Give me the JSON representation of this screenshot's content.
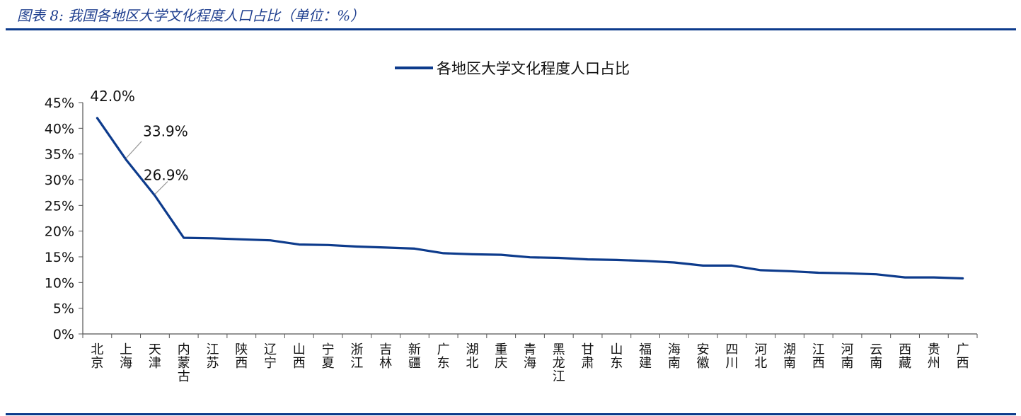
{
  "header": {
    "title": "图表 8:  我国各地区大学文化程度人口占比（单位：%）"
  },
  "colors": {
    "series": "#0d3b8c",
    "axis": "#555555",
    "leader": "#999999",
    "rule": "#0d3b8c"
  },
  "chart_data": {
    "type": "line",
    "legend": {
      "position": "top-center",
      "label": "各地区大学文化程度人口占比"
    },
    "y_ticks": [
      "0%",
      "5%",
      "10%",
      "15%",
      "20%",
      "25%",
      "30%",
      "35%",
      "40%",
      "45%"
    ],
    "ylim": [
      0,
      45
    ],
    "grid": false,
    "categories": [
      "北京",
      "上海",
      "天津",
      "内蒙古",
      "江苏",
      "陕西",
      "辽宁",
      "山西",
      "宁夏",
      "浙江",
      "吉林",
      "新疆",
      "广东",
      "湖北",
      "重庆",
      "青海",
      "黑龙江",
      "甘肃",
      "山东",
      "福建",
      "海南",
      "安徽",
      "四川",
      "河北",
      "湖南",
      "江西",
      "河南",
      "云南",
      "西藏",
      "贵州",
      "广西"
    ],
    "series": [
      {
        "name": "各地区大学文化程度人口占比",
        "values": [
          42.0,
          33.9,
          26.9,
          18.7,
          18.6,
          18.4,
          18.2,
          17.4,
          17.3,
          17.0,
          16.8,
          16.6,
          15.7,
          15.5,
          15.4,
          14.9,
          14.8,
          14.5,
          14.4,
          14.2,
          13.9,
          13.3,
          13.3,
          12.4,
          12.2,
          11.9,
          11.8,
          11.6,
          11.0,
          11.0,
          10.8
        ]
      }
    ],
    "data_labels": [
      {
        "index": 0,
        "text": "42.0%"
      },
      {
        "index": 1,
        "text": "33.9%"
      },
      {
        "index": 2,
        "text": "26.9%"
      }
    ]
  }
}
